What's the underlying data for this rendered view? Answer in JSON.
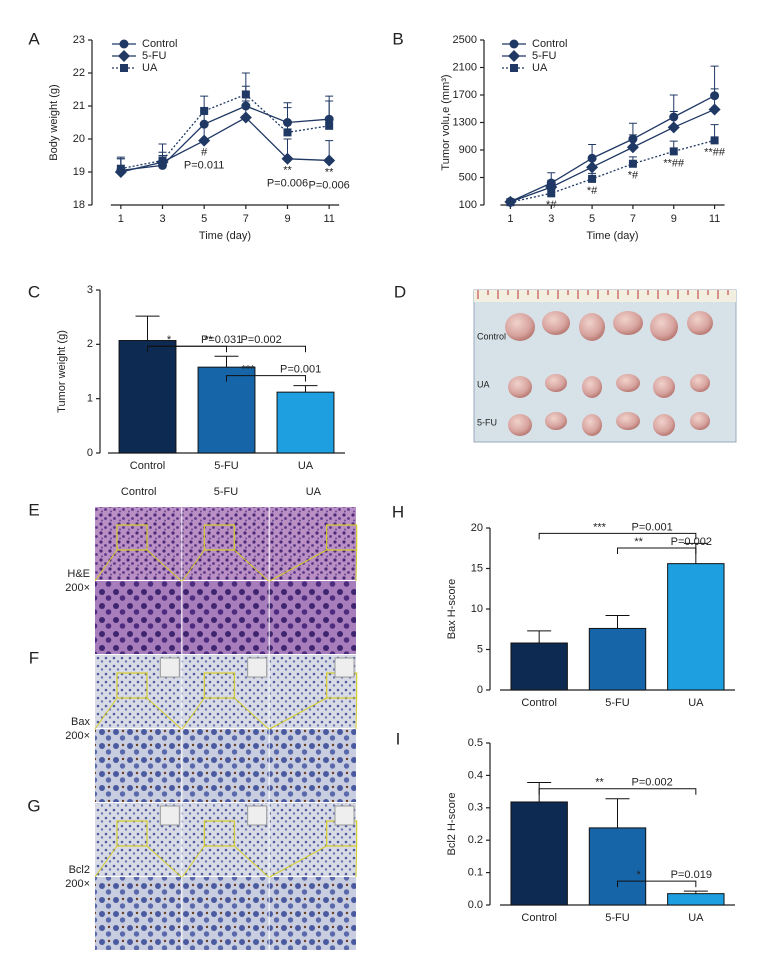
{
  "chart_data": [
    {
      "type": "line",
      "panel": "A",
      "ylabel": "Body weight (g)",
      "xlabel": "Time (day)",
      "x": [
        1,
        3,
        5,
        7,
        9,
        11
      ],
      "xlim": [
        0,
        12
      ],
      "xticks": [
        1,
        3,
        5,
        7,
        9,
        11
      ],
      "ylim": [
        18,
        23
      ],
      "yticks": [
        18,
        19,
        20,
        21,
        22,
        23
      ],
      "legend": "upper left",
      "series": [
        {
          "name": "Control",
          "color": "#1f3864",
          "marker": "circle",
          "dashed": false,
          "values": [
            19.05,
            19.2,
            20.45,
            21.0,
            20.5,
            20.6
          ],
          "errors": [
            0.4,
            0.3,
            0.4,
            0.6,
            0.6,
            0.7
          ]
        },
        {
          "name": "5-FU",
          "color": "#1f3864",
          "marker": "diamond",
          "dashed": false,
          "values": [
            19.0,
            19.3,
            19.95,
            20.65,
            19.4,
            19.35
          ],
          "errors": [
            0.4,
            0.3,
            0.5,
            0.5,
            0.6,
            0.6
          ]
        },
        {
          "name": "UA",
          "color": "#1f3864",
          "marker": "square",
          "dashed": true,
          "values": [
            19.1,
            19.35,
            20.85,
            21.35,
            20.2,
            20.4
          ],
          "errors": [
            0.3,
            0.5,
            0.45,
            0.65,
            0.75,
            0.75
          ]
        }
      ],
      "annotations": [
        {
          "x": 5,
          "text": [
            "#",
            "P=0.011"
          ]
        },
        {
          "x": 9,
          "text": [
            "**",
            "P=0.006"
          ]
        },
        {
          "x": 11,
          "text": [
            "**",
            "P=0.006"
          ]
        }
      ]
    },
    {
      "type": "line",
      "panel": "B",
      "ylabel": "Tumor volu,e (mm³)",
      "xlabel": "Time (day)",
      "x": [
        1,
        3,
        5,
        7,
        9,
        11
      ],
      "xlim": [
        0,
        12
      ],
      "xticks": [
        1,
        3,
        5,
        7,
        9,
        11
      ],
      "ylim": [
        100,
        2500
      ],
      "yticks": [
        100,
        500,
        900,
        1300,
        1700,
        2100,
        2500
      ],
      "legend": "upper left",
      "series": [
        {
          "name": "Control",
          "color": "#1f3864",
          "marker": "circle",
          "dashed": false,
          "values": [
            150,
            420,
            780,
            1060,
            1380,
            1690
          ],
          "errors": [
            40,
            150,
            200,
            230,
            320,
            430
          ]
        },
        {
          "name": "5-FU",
          "color": "#1f3864",
          "marker": "diamond",
          "dashed": false,
          "values": [
            145,
            360,
            650,
            940,
            1230,
            1490
          ],
          "errors": [
            40,
            100,
            150,
            180,
            230,
            300
          ]
        },
        {
          "name": "UA",
          "color": "#1f3864",
          "marker": "square",
          "dashed": true,
          "values": [
            140,
            270,
            480,
            700,
            880,
            1040
          ],
          "errors": [
            30,
            60,
            80,
            100,
            150,
            230
          ]
        }
      ],
      "annotations": [
        {
          "x": 3,
          "text": [
            "*#"
          ]
        },
        {
          "x": 5,
          "text": [
            "*#"
          ]
        },
        {
          "x": 7,
          "text": [
            "*#"
          ]
        },
        {
          "x": 9,
          "text": [
            "**##"
          ]
        },
        {
          "x": 11,
          "text": [
            "**##"
          ]
        }
      ]
    },
    {
      "type": "bar",
      "panel": "C",
      "ylabel": "Tumor weight (g)",
      "categories": [
        "Control",
        "5-FU",
        "UA"
      ],
      "values": [
        2.07,
        1.58,
        1.12
      ],
      "errors": [
        0.45,
        0.2,
        0.12
      ],
      "colors": [
        "#0d2b52",
        "#1565a8",
        "#1e9fe0"
      ],
      "ylim": [
        0,
        3
      ],
      "yticks": [
        0,
        1,
        2,
        3
      ],
      "brackets": [
        {
          "from": "Control",
          "to": "UA",
          "stars": "**",
          "p": "P=0.002"
        },
        {
          "from": "Control",
          "to": "5-FU",
          "stars": "*",
          "p": "P=0.031"
        },
        {
          "from": "5-FU",
          "to": "UA",
          "stars": "***",
          "p": "P=0.001"
        }
      ]
    },
    {
      "type": "bar",
      "panel": "H",
      "ylabel": "Bax H-score",
      "categories": [
        "Control",
        "5-FU",
        "UA"
      ],
      "values": [
        5.8,
        7.6,
        15.6
      ],
      "errors": [
        1.5,
        1.6,
        2.5
      ],
      "colors": [
        "#0d2b52",
        "#1565a8",
        "#1e9fe0"
      ],
      "ylim": [
        0,
        20
      ],
      "yticks": [
        0,
        5,
        10,
        15,
        20
      ],
      "brackets": [
        {
          "from": "Control",
          "to": "UA",
          "stars": "***",
          "p": "P=0.001"
        },
        {
          "from": "5-FU",
          "to": "UA",
          "stars": "**",
          "p": "P=0.002"
        }
      ]
    },
    {
      "type": "bar",
      "panel": "I",
      "ylabel": "Bcl2 H-score",
      "categories": [
        "Control",
        "5-FU",
        "UA"
      ],
      "values": [
        0.318,
        0.238,
        0.035
      ],
      "errors": [
        0.06,
        0.09,
        0.008
      ],
      "colors": [
        "#0d2b52",
        "#1565a8",
        "#1e9fe0"
      ],
      "ylim": [
        0,
        0.5
      ],
      "yticks": [
        {
          "value": 0,
          "label": "0.0"
        },
        0.1,
        0.2,
        0.3,
        0.4,
        0.5
      ],
      "brackets": [
        {
          "from": "Control",
          "to": "UA",
          "stars": "**",
          "p": "P=0.002"
        },
        {
          "from": "5-FU",
          "to": "UA",
          "stars": "*",
          "p": "P=0.019"
        }
      ]
    }
  ],
  "photo": {
    "panel": "D",
    "rows": [
      "Control",
      "UA",
      "5-FU"
    ]
  },
  "histology": {
    "columns": [
      "Control",
      "5-FU",
      "UA"
    ],
    "rows": [
      {
        "panel": "E",
        "stain": "H&E",
        "magnification": "200×"
      },
      {
        "panel": "F",
        "stain": "Bax",
        "magnification": "200×"
      },
      {
        "panel": "G",
        "stain": "Bcl2",
        "magnification": "200×"
      }
    ]
  }
}
